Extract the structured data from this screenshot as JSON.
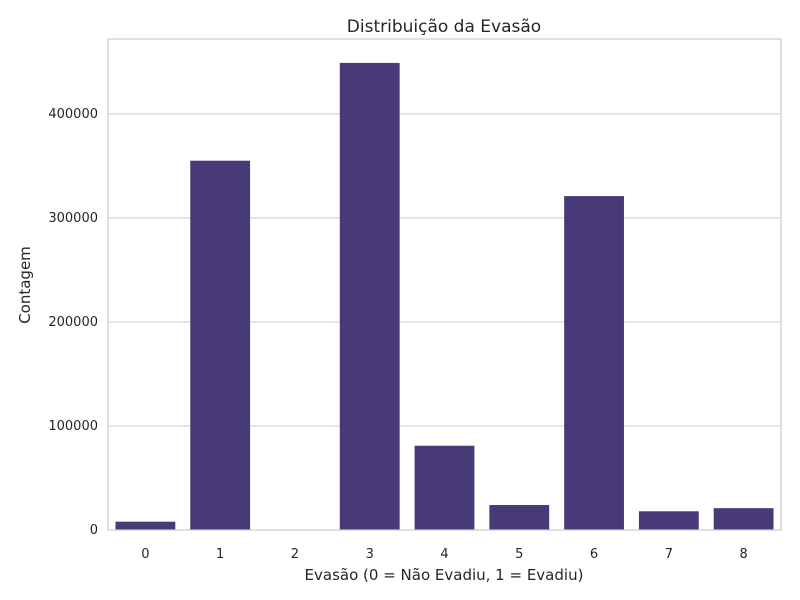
{
  "chart_data": {
    "type": "bar",
    "title": "Distribuição da Evasão",
    "xlabel": "Evasão (0 = Não Evadiu, 1 = Evadiu)",
    "ylabel": "Contagem",
    "categories": [
      "0",
      "1",
      "2",
      "3",
      "4",
      "5",
      "6",
      "7",
      "8"
    ],
    "values": [
      8000,
      355000,
      500,
      449000,
      81000,
      24000,
      321000,
      18000,
      21000
    ],
    "ylim": [
      0,
      472000
    ],
    "yticks": [
      0,
      100000,
      200000,
      300000,
      400000
    ],
    "ytick_labels": [
      "0",
      "100000",
      "200000",
      "300000",
      "400000"
    ],
    "grid": "horizontal",
    "bar_color": "#483a79",
    "frame_color": "#cccccc"
  }
}
